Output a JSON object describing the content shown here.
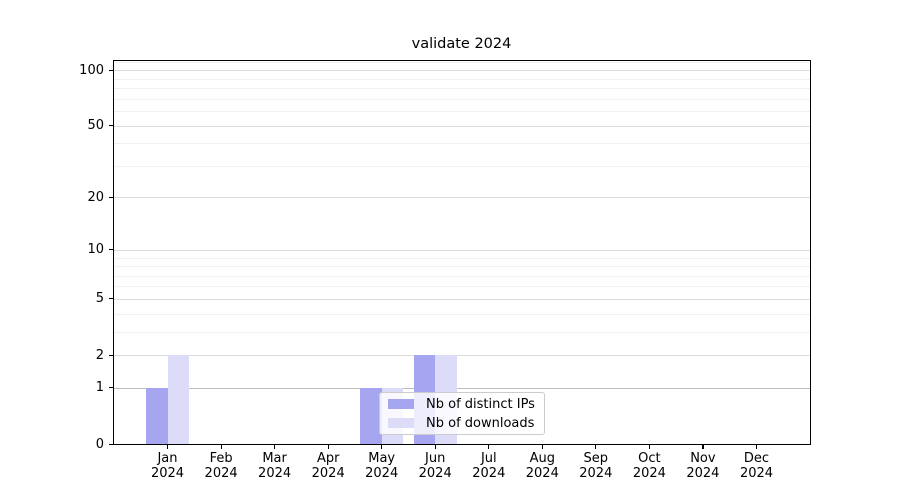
{
  "title": "validate 2024",
  "chart_data": {
    "type": "bar",
    "title": "validate 2024",
    "yscale": "log1p",
    "ylim": [
      0,
      112
    ],
    "grid": true,
    "legend_position": "lower-center",
    "x_tick_months": [
      "Jan",
      "Feb",
      "Mar",
      "Apr",
      "May",
      "Jun",
      "Jul",
      "Aug",
      "Sep",
      "Oct",
      "Nov",
      "Dec"
    ],
    "x_tick_year": "2024",
    "yticks": [
      0,
      1,
      2,
      5,
      10,
      20,
      50,
      100
    ],
    "ytick_labels": [
      "0",
      "1",
      "2",
      "5",
      "10",
      "20",
      "50",
      "100"
    ],
    "minor_yticks": [
      3,
      4,
      6,
      7,
      8,
      9,
      30,
      40,
      60,
      70,
      80,
      90,
      110
    ],
    "series": [
      {
        "name": "Nb of distinct IPs",
        "color": "#a5a5f0",
        "values": [
          1,
          0,
          0,
          0,
          1,
          2,
          0,
          0,
          0,
          0,
          0,
          0
        ]
      },
      {
        "name": "Nb of downloads",
        "color": "#dcdcf8",
        "values": [
          2,
          0,
          0,
          0,
          1,
          2,
          0,
          0,
          0,
          0,
          0,
          0
        ]
      }
    ]
  },
  "colors": {
    "distinct_ips": "#a5a5f0",
    "downloads": "#dcdcf8",
    "grid_major": "#dcdcdc",
    "grid_minor": "#f1f1f1",
    "grid_unit_line": "#bdbdbd",
    "spine": "#000000"
  }
}
